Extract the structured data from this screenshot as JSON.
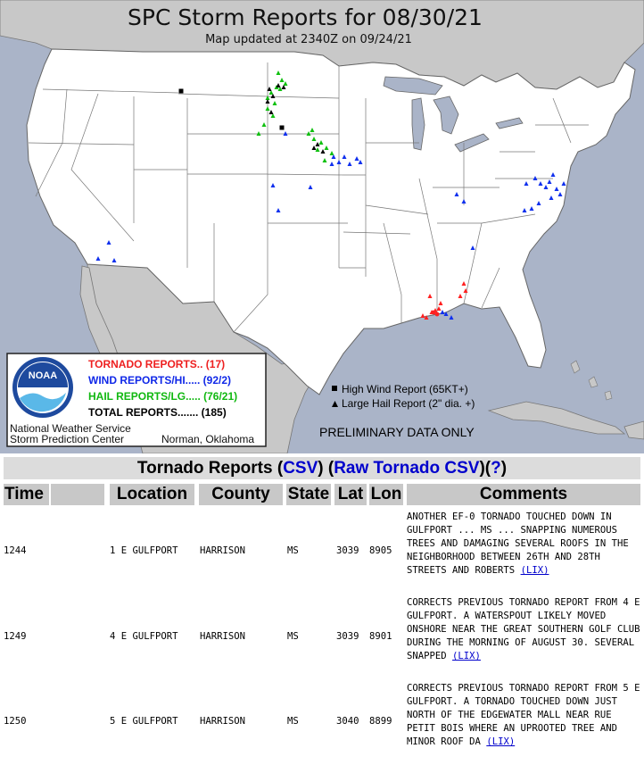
{
  "map": {
    "title": "SPC Storm Reports for 08/30/21",
    "subtitle": "Map updated at 2340Z on 09/24/21",
    "legend": {
      "logo_text": "NOAA",
      "tornado": "TORNADO REPORTS.. (17)",
      "wind": "WIND REPORTS/HI..... (92/2)",
      "hail": "HAIL REPORTS/LG..... (76/21)",
      "total": "TOTAL REPORTS....... (185)",
      "agency_line1": "National Weather Service",
      "agency_line2": "Storm Prediction Center",
      "location": "Norman, Oklahoma"
    },
    "key": {
      "high_wind": "High Wind Report (65KT+)",
      "large_hail": "Large Hail Report (2\" dia. +)"
    },
    "preliminary": "PRELIMINARY DATA ONLY",
    "colors": {
      "water": "#aab4c8",
      "land_us": "#ffffff",
      "land_other": "#c8c8c8",
      "tornado": "#ff2020",
      "wind": "#1030ee",
      "hail": "#10c010",
      "significant": "#000000"
    }
  },
  "tornado_section": {
    "title_prefix": "Tornado Reports (",
    "csv_label": "CSV",
    "mid": ") (",
    "raw_label": "Raw Tornado CSV",
    "close_open": ")(",
    "help_label": "?",
    "close": ")"
  },
  "table": {
    "headers": [
      "Time",
      "",
      "Location",
      "County",
      "State",
      "Lat",
      "Lon",
      "Comments"
    ],
    "rows": [
      {
        "time": "1244",
        "location": "1 E GULFPORT",
        "county": "HARRISON",
        "state": "MS",
        "lat": "3039",
        "lon": "8905",
        "comment": "ANOTHER EF-0 TORNADO TOUCHED DOWN IN GULFPORT ... MS ... SNAPPING NUMEROUS TREES AND DAMAGING SEVERAL ROOFS IN THE NEIGHBORHOOD BETWEEN 26TH AND 28TH STREETS AND ROBERTS",
        "office": "(LIX)"
      },
      {
        "time": "1249",
        "location": "4 E GULFPORT",
        "county": "HARRISON",
        "state": "MS",
        "lat": "3039",
        "lon": "8901",
        "comment": "CORRECTS PREVIOUS TORNADO REPORT FROM 4 E GULFPORT. A WATERSPOUT LIKELY MOVED ONSHORE NEAR THE GREAT SOUTHERN GOLF CLUB DURING THE MORNING OF AUGUST 30. SEVERAL SNAPPED",
        "office": "(LIX)"
      },
      {
        "time": "1250",
        "location": "5 E GULFPORT",
        "county": "HARRISON",
        "state": "MS",
        "lat": "3040",
        "lon": "8899",
        "comment": "CORRECTS PREVIOUS TORNADO REPORT FROM 5 E GULFPORT. A TORNADO TOUCHED DOWN JUST NORTH OF THE EDGEWATER MALL NEAR RUE PETIT BOIS WHERE AN UPROOTED TREE AND MINOR ROOF DA",
        "office": "(LIX)"
      }
    ]
  }
}
